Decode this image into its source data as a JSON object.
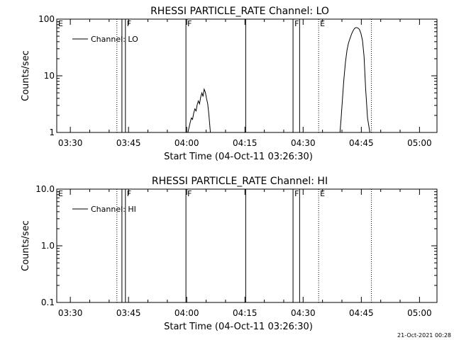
{
  "footer": {
    "timestamp": "21-Oct-2021 00:28"
  },
  "chart_data": [
    {
      "type": "line",
      "title": "RHESSI PARTICLE_RATE Channel: LO",
      "xlabel": "Start Time (04-Oct-11 03:26:30)",
      "ylabel": "Counts/sec",
      "x_unit": "minutes after 03:26:30",
      "xlim": [
        0,
        98
      ],
      "ylim": [
        1,
        100
      ],
      "yscale": "log",
      "xticks": [
        {
          "t": 3.5,
          "label": "03:30"
        },
        {
          "t": 18.5,
          "label": "03:45"
        },
        {
          "t": 33.5,
          "label": "04:00"
        },
        {
          "t": 48.5,
          "label": "04:15"
        },
        {
          "t": 63.5,
          "label": "04:30"
        },
        {
          "t": 78.5,
          "label": "04:45"
        },
        {
          "t": 93.5,
          "label": "05:00"
        }
      ],
      "yticks": [
        {
          "v": 1,
          "label": "1"
        },
        {
          "v": 10,
          "label": "10"
        },
        {
          "v": 100,
          "label": "100"
        }
      ],
      "legend": {
        "label": "Channel: LO",
        "placement": "top-left"
      },
      "markers": [
        {
          "t": 0,
          "style": "none",
          "flag": "E"
        },
        {
          "t": 15.5,
          "style": "dotted",
          "flag": ""
        },
        {
          "t": 16.8,
          "style": "solid",
          "flag": ""
        },
        {
          "t": 17.7,
          "style": "solid",
          "flag": "F"
        },
        {
          "t": 33.3,
          "style": "solid",
          "flag": "F"
        },
        {
          "t": 48.7,
          "style": "solid",
          "flag": ""
        },
        {
          "t": 60.9,
          "style": "solid",
          "flag": "F"
        },
        {
          "t": 62.6,
          "style": "solid",
          "flag": ""
        },
        {
          "t": 67.5,
          "style": "dotted",
          "flag": "E"
        },
        {
          "t": 81.1,
          "style": "dotted",
          "flag": ""
        }
      ],
      "series": [
        {
          "name": "Channel: LO",
          "segments": [
            {
              "t": [
                33.8,
                34.4,
                34.7,
                35.0,
                35.3,
                35.6,
                35.9,
                36.2,
                36.5,
                36.8,
                37.1,
                37.4,
                37.7,
                38.0,
                38.3,
                38.6,
                38.9,
                39.2,
                39.6
              ],
              "y": [
                1.0,
                1.5,
                1.8,
                1.7,
                2.2,
                2.6,
                2.4,
                3.1,
                3.6,
                3.2,
                4.2,
                5.0,
                4.3,
                5.8,
                5.1,
                4.0,
                3.2,
                2.1,
                1.0
              ]
            },
            {
              "t": [
                73.0,
                73.3,
                73.6,
                74.0,
                74.4,
                74.8,
                75.2,
                75.6,
                76.0,
                76.4,
                76.8,
                77.2,
                77.6,
                78.0,
                78.4,
                78.8,
                79.2,
                79.6,
                80.1,
                80.7
              ],
              "y": [
                1.0,
                1.8,
                3.5,
                8.5,
                17,
                28,
                38,
                46,
                55,
                63,
                69,
                71,
                70,
                66,
                56,
                42,
                22,
                6,
                1.8,
                1.0
              ]
            }
          ]
        }
      ]
    },
    {
      "type": "line",
      "title": "RHESSI PARTICLE_RATE Channel: HI",
      "xlabel": "Start Time (04-Oct-11 03:26:30)",
      "ylabel": "Counts/sec",
      "x_unit": "minutes after 03:26:30",
      "xlim": [
        0,
        98
      ],
      "ylim": [
        0.1,
        10
      ],
      "yscale": "log",
      "xticks": [
        {
          "t": 3.5,
          "label": "03:30"
        },
        {
          "t": 18.5,
          "label": "03:45"
        },
        {
          "t": 33.5,
          "label": "04:00"
        },
        {
          "t": 48.5,
          "label": "04:15"
        },
        {
          "t": 63.5,
          "label": "04:30"
        },
        {
          "t": 78.5,
          "label": "04:45"
        },
        {
          "t": 93.5,
          "label": "05:00"
        }
      ],
      "yticks": [
        {
          "v": 0.1,
          "label": "0.1"
        },
        {
          "v": 1,
          "label": "1.0"
        },
        {
          "v": 10,
          "label": "10.0"
        }
      ],
      "legend": {
        "label": "Channel: HI",
        "placement": "top-left"
      },
      "markers": [
        {
          "t": 0,
          "style": "none",
          "flag": "E"
        },
        {
          "t": 15.5,
          "style": "dotted",
          "flag": ""
        },
        {
          "t": 16.8,
          "style": "solid",
          "flag": ""
        },
        {
          "t": 17.7,
          "style": "solid",
          "flag": "F"
        },
        {
          "t": 33.3,
          "style": "solid",
          "flag": "F"
        },
        {
          "t": 48.7,
          "style": "solid",
          "flag": ""
        },
        {
          "t": 60.9,
          "style": "solid",
          "flag": "F"
        },
        {
          "t": 62.6,
          "style": "solid",
          "flag": ""
        },
        {
          "t": 67.5,
          "style": "dotted",
          "flag": "E"
        },
        {
          "t": 81.1,
          "style": "dotted",
          "flag": ""
        }
      ],
      "series": [
        {
          "name": "Channel: HI",
          "segments": []
        }
      ]
    }
  ]
}
